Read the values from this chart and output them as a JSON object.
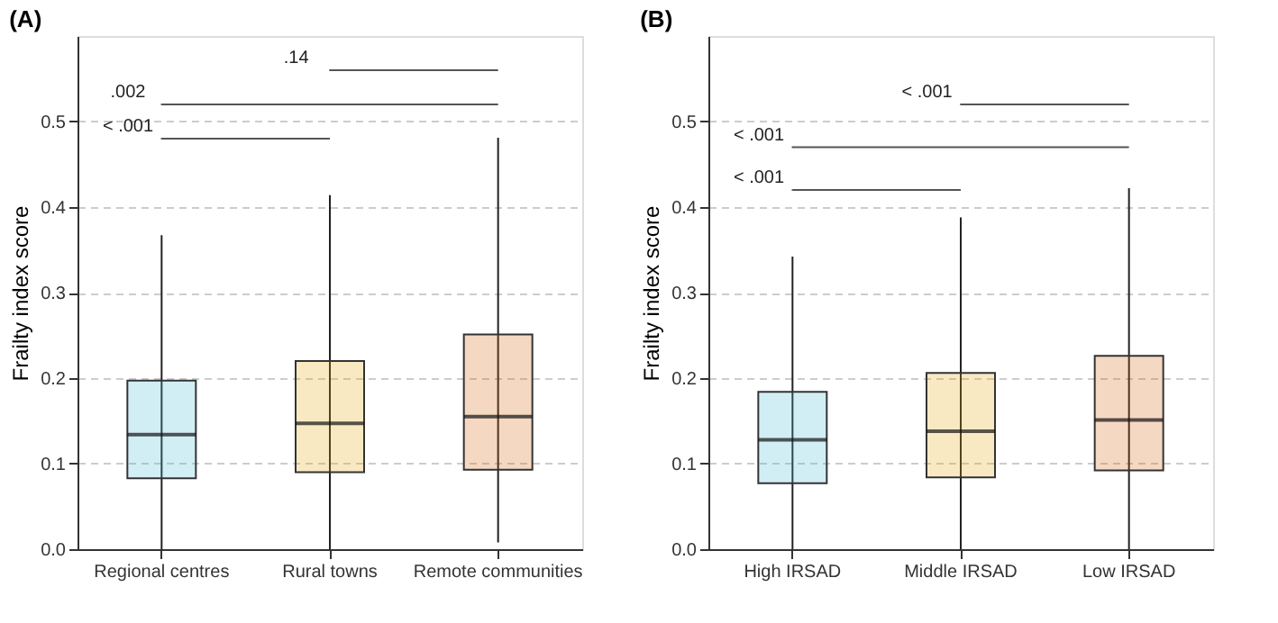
{
  "chart_data": [
    {
      "type": "box",
      "title": "(A)",
      "ylabel": "Frailty index score",
      "categories": [
        "Regional centres",
        "Rural towns",
        "Remote communities"
      ],
      "colors": [
        "#4bbcd8",
        "#e8a80c",
        "#d8640c"
      ],
      "boxes": [
        {
          "low": 0.0,
          "q1": 0.083,
          "median": 0.134,
          "q3": 0.197,
          "high": 0.367
        },
        {
          "low": 0.0,
          "q1": 0.09,
          "median": 0.147,
          "q3": 0.22,
          "high": 0.414
        },
        {
          "low": 0.008,
          "q1": 0.093,
          "median": 0.155,
          "q3": 0.251,
          "high": 0.481
        }
      ],
      "ylim": [
        0,
        0.6
      ],
      "yticks": [
        {
          "value": 0,
          "label": "0.0"
        },
        {
          "value": 0.1,
          "label": "0.1"
        },
        {
          "value": 0.2,
          "label": "0.2"
        },
        {
          "value": 0.3,
          "label": "0.3"
        },
        {
          "value": 0.4,
          "label": "0.4"
        },
        {
          "value": 0.5,
          "label": "0.5"
        }
      ],
      "grid": "y",
      "annotations": [
        "< .001",
        ".002",
        ".14"
      ]
    },
    {
      "type": "box",
      "title": "(B)",
      "ylabel": "Frailty index score",
      "categories": [
        "High IRSAD",
        "Middle IRSAD",
        "Low IRSAD"
      ],
      "colors": [
        "#4bbcd8",
        "#e8a80c",
        "#d8640c"
      ],
      "boxes": [
        {
          "low": 0.0,
          "q1": 0.077,
          "median": 0.128,
          "q3": 0.184,
          "high": 0.342
        },
        {
          "low": 0.0,
          "q1": 0.084,
          "median": 0.138,
          "q3": 0.206,
          "high": 0.388
        },
        {
          "low": 0.0,
          "q1": 0.092,
          "median": 0.151,
          "q3": 0.226,
          "high": 0.422
        }
      ],
      "ylim": [
        0,
        0.6
      ],
      "yticks": [
        {
          "value": 0,
          "label": "0.0"
        },
        {
          "value": 0.1,
          "label": "0.1"
        },
        {
          "value": 0.2,
          "label": "0.2"
        },
        {
          "value": 0.3,
          "label": "0.3"
        },
        {
          "value": 0.4,
          "label": "0.4"
        },
        {
          "value": 0.5,
          "label": "0.5"
        }
      ],
      "grid": "y",
      "annotations": [
        "< .001",
        "< .001",
        "< .001"
      ]
    }
  ]
}
